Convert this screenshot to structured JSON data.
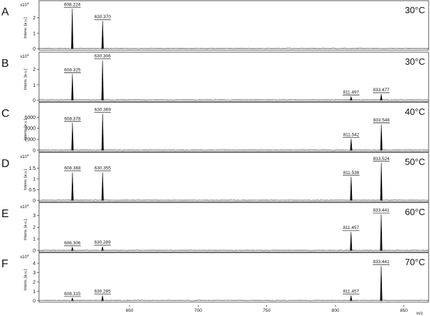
{
  "figure": {
    "x_unit": "m/z",
    "intensity_label": "Intens. [a.u.]"
  },
  "chart_data": [
    {
      "type": "line",
      "panel": "A",
      "temperature": "30°C",
      "x_range": [
        584,
        868
      ],
      "y_range": [
        0,
        2.8
      ],
      "y_exponent": "x10",
      "y_ticks": [
        0,
        1,
        2
      ],
      "peaks": [
        {
          "mz": 608.224,
          "intensity": 2.6,
          "label": "608.224"
        },
        {
          "mz": 630.37,
          "intensity": 1.8,
          "label": "630.370"
        }
      ]
    },
    {
      "type": "line",
      "panel": "B",
      "temperature": "30°C",
      "x_range": [
        584,
        868
      ],
      "y_range": [
        0,
        2.8
      ],
      "y_exponent": "x10",
      "y_ticks": [
        0,
        1,
        2
      ],
      "peaks": [
        {
          "mz": 608.325,
          "intensity": 1.7,
          "label": "608.325"
        },
        {
          "mz": 630.306,
          "intensity": 2.6,
          "label": "630.306"
        },
        {
          "mz": 811.497,
          "intensity": 0.25,
          "label": "811.497"
        },
        {
          "mz": 833.477,
          "intensity": 0.4,
          "label": "833.477"
        }
      ]
    },
    {
      "type": "line",
      "panel": "C",
      "temperature": "40°C",
      "x_range": [
        584,
        868
      ],
      "y_range": [
        0,
        7800
      ],
      "y_exponent": "",
      "y_ticks": [
        0,
        2000,
        4000,
        6000
      ],
      "peaks": [
        {
          "mz": 608.378,
          "intensity": 5000,
          "label": "608.378"
        },
        {
          "mz": 630.369,
          "intensity": 6600,
          "label": "630.369"
        },
        {
          "mz": 811.542,
          "intensity": 2100,
          "label": "811.542"
        },
        {
          "mz": 833.548,
          "intensity": 4700,
          "label": "833.548"
        }
      ]
    },
    {
      "type": "line",
      "panel": "D",
      "temperature": "50°C",
      "x_range": [
        584,
        868
      ],
      "y_range": [
        0,
        2.0
      ],
      "y_exponent": "x10",
      "y_ticks": [
        0.0,
        0.5,
        1.0,
        1.5
      ],
      "peaks": [
        {
          "mz": 608.368,
          "intensity": 1.3,
          "label": "608.368"
        },
        {
          "mz": 630.355,
          "intensity": 1.3,
          "label": "630.355"
        },
        {
          "mz": 811.538,
          "intensity": 1.1,
          "label": "811.538"
        },
        {
          "mz": 833.524,
          "intensity": 1.75,
          "label": "833.524"
        }
      ]
    },
    {
      "type": "line",
      "panel": "E",
      "temperature": "60°C",
      "x_range": [
        584,
        868
      ],
      "y_range": [
        0,
        3.7
      ],
      "y_exponent": "x10",
      "y_ticks": [
        0,
        1,
        2,
        3
      ],
      "peaks": [
        {
          "mz": 608.306,
          "intensity": 0.3,
          "label": "608.306"
        },
        {
          "mz": 630.289,
          "intensity": 0.35,
          "label": "630.289"
        },
        {
          "mz": 811.457,
          "intensity": 1.6,
          "label": "811.457"
        },
        {
          "mz": 833.441,
          "intensity": 3.1,
          "label": "833.441"
        }
      ]
    },
    {
      "type": "line",
      "panel": "F",
      "temperature": "70°C",
      "x_range": [
        584,
        868
      ],
      "y_range": [
        0,
        4.6
      ],
      "y_exponent": "x10",
      "y_ticks": [
        0,
        1,
        2,
        3,
        4
      ],
      "peaks": [
        {
          "mz": 608.315,
          "intensity": 0.3,
          "label": "608.315"
        },
        {
          "mz": 630.285,
          "intensity": 0.55,
          "label": "630.285"
        },
        {
          "mz": 811.457,
          "intensity": 0.55,
          "label": "811.457"
        },
        {
          "mz": 833.441,
          "intensity": 3.7,
          "label": "833.441"
        }
      ]
    }
  ],
  "x_ticks": [
    650,
    700,
    750,
    800,
    850
  ]
}
